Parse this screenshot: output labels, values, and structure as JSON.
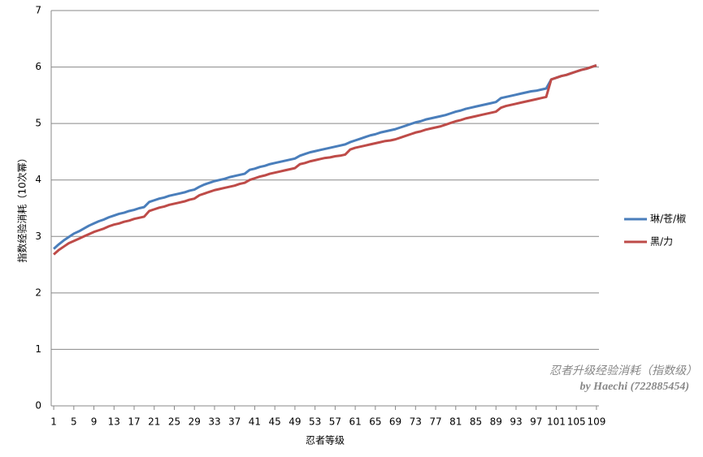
{
  "chart_data": {
    "type": "line",
    "y_label": "指数经验消耗（10次幂）",
    "x_label": "忍者等级",
    "annotations": [
      "忍者升级经验消耗（指数级）",
      "by Haechi (722885454)"
    ],
    "x": [
      1,
      2,
      3,
      4,
      5,
      6,
      7,
      8,
      9,
      10,
      11,
      12,
      13,
      14,
      15,
      16,
      17,
      18,
      19,
      20,
      21,
      22,
      23,
      24,
      25,
      26,
      27,
      28,
      29,
      30,
      31,
      32,
      33,
      34,
      35,
      36,
      37,
      38,
      39,
      40,
      41,
      42,
      43,
      44,
      45,
      46,
      47,
      48,
      49,
      50,
      51,
      52,
      53,
      54,
      55,
      56,
      57,
      58,
      59,
      60,
      61,
      62,
      63,
      64,
      65,
      66,
      67,
      68,
      69,
      70,
      71,
      72,
      73,
      74,
      75,
      76,
      77,
      78,
      79,
      80,
      81,
      82,
      83,
      84,
      85,
      86,
      87,
      88,
      89,
      90,
      91,
      92,
      93,
      94,
      95,
      96,
      97,
      98,
      99,
      100,
      101,
      102,
      103,
      104,
      105,
      106,
      107,
      108,
      109
    ],
    "series": [
      {
        "name": "琳/苍/椒",
        "color": "#4a7ebb",
        "values": [
          2.78,
          2.86,
          2.93,
          2.99,
          3.05,
          3.09,
          3.14,
          3.19,
          3.23,
          3.27,
          3.3,
          3.34,
          3.37,
          3.4,
          3.42,
          3.45,
          3.47,
          3.5,
          3.52,
          3.61,
          3.64,
          3.67,
          3.69,
          3.72,
          3.74,
          3.76,
          3.78,
          3.81,
          3.83,
          3.88,
          3.92,
          3.95,
          3.98,
          4.0,
          4.02,
          4.05,
          4.07,
          4.09,
          4.11,
          4.18,
          4.2,
          4.23,
          4.25,
          4.28,
          4.3,
          4.32,
          4.34,
          4.36,
          4.38,
          4.43,
          4.46,
          4.49,
          4.51,
          4.53,
          4.55,
          4.57,
          4.59,
          4.61,
          4.63,
          4.67,
          4.7,
          4.73,
          4.76,
          4.79,
          4.81,
          4.84,
          4.86,
          4.88,
          4.9,
          4.93,
          4.96,
          4.99,
          5.02,
          5.04,
          5.07,
          5.09,
          5.11,
          5.13,
          5.15,
          5.18,
          5.21,
          5.23,
          5.26,
          5.28,
          5.3,
          5.32,
          5.34,
          5.36,
          5.38,
          5.45,
          5.47,
          5.49,
          5.51,
          5.53,
          5.55,
          5.57,
          5.58,
          5.6,
          5.62,
          5.78,
          5.81,
          5.84,
          5.86,
          5.89,
          5.92,
          5.95,
          5.97,
          6.0,
          6.03
        ]
      },
      {
        "name": "黑/力",
        "color": "#be4b48",
        "values": [
          2.68,
          2.76,
          2.82,
          2.88,
          2.92,
          2.96,
          3.0,
          3.04,
          3.08,
          3.11,
          3.14,
          3.18,
          3.21,
          3.23,
          3.26,
          3.28,
          3.31,
          3.33,
          3.35,
          3.45,
          3.48,
          3.51,
          3.53,
          3.56,
          3.58,
          3.6,
          3.62,
          3.65,
          3.67,
          3.73,
          3.76,
          3.79,
          3.82,
          3.84,
          3.86,
          3.88,
          3.9,
          3.93,
          3.95,
          4.0,
          4.03,
          4.06,
          4.08,
          4.11,
          4.13,
          4.15,
          4.17,
          4.19,
          4.21,
          4.28,
          4.3,
          4.33,
          4.35,
          4.37,
          4.39,
          4.4,
          4.42,
          4.43,
          4.45,
          4.54,
          4.57,
          4.59,
          4.61,
          4.63,
          4.65,
          4.67,
          4.69,
          4.7,
          4.72,
          4.75,
          4.78,
          4.81,
          4.84,
          4.86,
          4.89,
          4.91,
          4.93,
          4.95,
          4.98,
          5.01,
          5.04,
          5.06,
          5.09,
          5.11,
          5.13,
          5.15,
          5.17,
          5.19,
          5.21,
          5.28,
          5.31,
          5.33,
          5.35,
          5.37,
          5.39,
          5.41,
          5.43,
          5.45,
          5.47,
          5.78,
          5.81,
          5.84,
          5.86,
          5.89,
          5.92,
          5.95,
          5.97,
          6.0,
          6.03
        ]
      }
    ],
    "xlim": [
      0.5,
      109.5
    ],
    "xticks": [
      1,
      5,
      9,
      13,
      17,
      21,
      25,
      29,
      33,
      37,
      41,
      45,
      49,
      53,
      57,
      61,
      65,
      69,
      73,
      77,
      81,
      85,
      89,
      93,
      97,
      101,
      105,
      109
    ],
    "ylim": [
      0,
      7
    ],
    "yticks": [
      0,
      1,
      2,
      3,
      4,
      5,
      6,
      7
    ],
    "grid": true,
    "legend": "right"
  }
}
